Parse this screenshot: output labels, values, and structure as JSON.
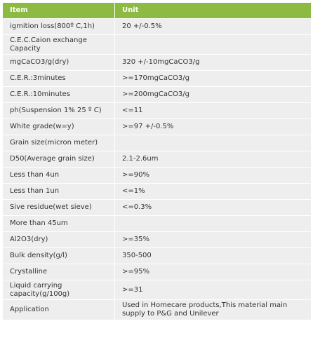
{
  "header": {
    "item": "Item",
    "unit": "Unit"
  },
  "rows": [
    {
      "item": "igmition loss(800º C,1h)",
      "unit": "20 +/-0.5%"
    },
    {
      "item": "C.E.C.Caion exchange Capacity",
      "unit": ""
    },
    {
      "item": "mgCaCO3/g(dry)",
      "unit": "320 +/-10mgCaCO3/g"
    },
    {
      "item": "C.E.R.:3minutes",
      "unit": ">=170mgCaCO3/g"
    },
    {
      "item": "C.E.R.:10minutes",
      "unit": ">=200mgCaCO3/g"
    },
    {
      "item": "ph(Suspension 1% 25 º C)",
      "unit": "<=11"
    },
    {
      "item": "White grade(w=y)",
      "unit": ">=97 +/-0.5%"
    },
    {
      "item": "Grain size(micron meter)",
      "unit": ""
    },
    {
      "item": "D50(Average grain size)",
      "unit": "2.1-2.6um"
    },
    {
      "item": "Less than 4un",
      "unit": ">=90%"
    },
    {
      "item": "Less than 1un",
      "unit": "<=1%"
    },
    {
      "item": "Sive residue(wet sieve)",
      "unit": "<=0.3%"
    },
    {
      "item": "More than 45um",
      "unit": ""
    },
    {
      "item": "Al2O3(dry)",
      "unit": ">=35%"
    },
    {
      "item": "Bulk density(g/l)",
      "unit": "350-500"
    },
    {
      "item": "Crystalline",
      "unit": ">=95%"
    },
    {
      "item": "Liquid carrying capacity(g/100g)",
      "unit": ">=31"
    },
    {
      "item": "Application",
      "unit": "Used in Homecare products,This material main supply to P&G and Unilever"
    }
  ]
}
